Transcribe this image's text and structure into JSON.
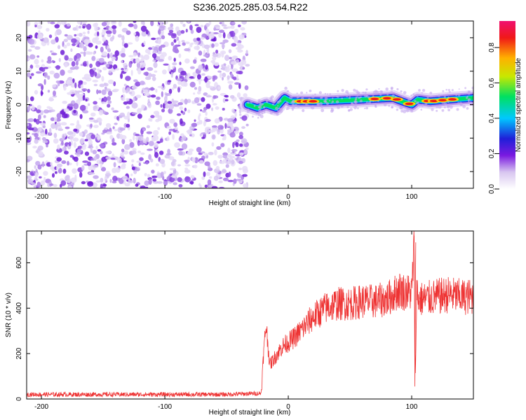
{
  "title": "S236.2025.285.03.54.R22",
  "chart_data": [
    {
      "type": "heatmap",
      "xlabel": "Height of straight line (km)",
      "ylabel": "Frequency (Hz)",
      "xlim": [
        -212,
        150
      ],
      "ylim": [
        -25,
        25
      ],
      "xticks": [
        -200,
        -100,
        0,
        100
      ],
      "yticks": [
        -20,
        -10,
        0,
        10,
        20
      ],
      "noise_region_x": [
        -212,
        -33
      ],
      "signal_track": {
        "x": [
          -33,
          -25,
          -18,
          -10,
          -3,
          2,
          10,
          30,
          60,
          85,
          92,
          100,
          105,
          115,
          130,
          150
        ],
        "freq": [
          0,
          -1,
          0,
          -1,
          2,
          1,
          1,
          1,
          1.5,
          2,
          1,
          0,
          1.5,
          1,
          1.5,
          2
        ]
      },
      "colorbar": {
        "label": "Normalized spectral amplitude",
        "ticks": [
          0.0,
          0.2,
          0.4,
          0.6,
          0.8
        ],
        "range": [
          0,
          0.95
        ]
      }
    },
    {
      "type": "line",
      "xlabel": "Height of straight line (km)",
      "ylabel": "SNR (10 * v/v)",
      "xlim": [
        -212,
        150
      ],
      "ylim": [
        0,
        740
      ],
      "xticks": [
        -200,
        -100,
        0,
        100
      ],
      "yticks": [
        0,
        200,
        400,
        600
      ],
      "color": "#ee3333",
      "series": [
        {
          "name": "SNR",
          "x": [
            -212,
            -150,
            -100,
            -50,
            -22,
            -20,
            -18,
            -15,
            -10,
            -5,
            0,
            5,
            10,
            15,
            20,
            25,
            30,
            40,
            50,
            60,
            70,
            80,
            85,
            90,
            95,
            100,
            102,
            103,
            104,
            105,
            110,
            120,
            130,
            140,
            150
          ],
          "y": [
            20,
            20,
            20,
            20,
            25,
            200,
            330,
            150,
            190,
            230,
            250,
            270,
            300,
            330,
            360,
            380,
            400,
            420,
            420,
            430,
            430,
            440,
            460,
            480,
            470,
            470,
            680,
            60,
            500,
            440,
            440,
            450,
            460,
            450,
            450
          ]
        }
      ]
    }
  ]
}
